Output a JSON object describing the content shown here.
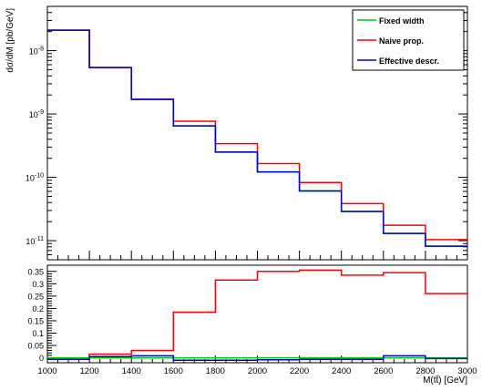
{
  "chart_data": [
    {
      "type": "line",
      "step": "histogram",
      "ylabel": "dσ/dM [pb/GeV]",
      "y_scale": "log",
      "ylim": [
        5e-12,
        5e-08
      ],
      "xlim": [
        1000,
        3000
      ],
      "bin_edges": [
        1000,
        1200,
        1400,
        1600,
        1800,
        2000,
        2200,
        2400,
        2600,
        2800,
        3000
      ],
      "y_ticks": [
        {
          "value": 1e-11,
          "base": "10",
          "exp": "-11"
        },
        {
          "value": 1e-10,
          "base": "10",
          "exp": "-10"
        },
        {
          "value": 1e-09,
          "base": "10",
          "exp": "-9"
        },
        {
          "value": 1e-08,
          "base": "10",
          "exp": "-8"
        }
      ],
      "legend_position": "top-right",
      "series": [
        {
          "name": "Fixed width",
          "color": "#00cc00",
          "values": [
            2.1e-08,
            5.4e-09,
            1.7e-09,
            6.5e-10,
            2.5e-10,
            1.22e-10,
            6.1e-11,
            2.9e-11,
            1.3e-11,
            8.2e-12
          ]
        },
        {
          "name": "Naive prop.",
          "color": "#ff0000",
          "values": [
            2.1e-08,
            5.4e-09,
            1.7e-09,
            7.7e-10,
            3.4e-10,
            1.65e-10,
            8.3e-11,
            3.85e-11,
            1.75e-11,
            1.04e-11
          ]
        },
        {
          "name": "Effective descr.",
          "color": "#0000cc",
          "values": [
            2.1e-08,
            5.4e-09,
            1.7e-09,
            6.5e-10,
            2.5e-10,
            1.22e-10,
            6.1e-11,
            2.9e-11,
            1.3e-11,
            8.2e-12
          ]
        }
      ]
    },
    {
      "type": "line",
      "step": "histogram",
      "xlabel": "M(tt̄) [GeV]",
      "xlim": [
        1000,
        3000
      ],
      "ylim": [
        -0.02,
        0.375
      ],
      "x_ticks": [
        1000,
        1200,
        1400,
        1600,
        1800,
        2000,
        2200,
        2400,
        2600,
        2800,
        3000
      ],
      "y_ticks": [
        "0",
        "0.05",
        "0.1",
        "0.15",
        "0.2",
        "0.25",
        "0.3",
        "0.35"
      ],
      "reference_line": {
        "y": 0,
        "style": "dashed"
      },
      "bin_edges": [
        1000,
        1200,
        1400,
        1600,
        1800,
        2000,
        2200,
        2400,
        2600,
        2800,
        3000
      ],
      "series": [
        {
          "color": "#00cc00",
          "values": [
            0,
            0,
            0,
            0,
            0,
            0,
            0,
            0,
            0,
            0
          ]
        },
        {
          "color": "#ff0000",
          "values": [
            -0.006,
            0.015,
            0.03,
            0.185,
            0.315,
            0.35,
            0.355,
            0.335,
            0.345,
            0.26
          ]
        },
        {
          "color": "#0000cc",
          "values": [
            -0.006,
            0.005,
            0.008,
            -0.01,
            -0.01,
            -0.008,
            -0.006,
            -0.006,
            0.008,
            -0.003
          ]
        }
      ]
    }
  ]
}
